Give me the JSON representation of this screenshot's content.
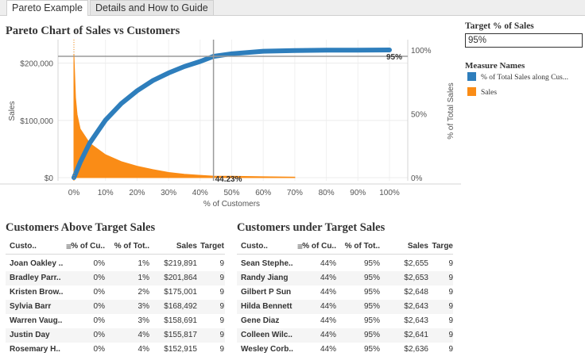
{
  "tabs": [
    {
      "label": "Pareto Example",
      "active": true
    },
    {
      "label": "Details and How to Guide",
      "active": false
    }
  ],
  "chart": {
    "title": "Pareto Chart of Sales vs Customers",
    "xlabel": "% of Customers",
    "ylabel_left": "Sales",
    "ylabel_right": "% of Total Sales",
    "x_ticks": [
      "0%",
      "10%",
      "20%",
      "30%",
      "40%",
      "50%",
      "60%",
      "70%",
      "80%",
      "90%",
      "100%"
    ],
    "y_left_ticks": [
      "$0",
      "$100,000",
      "$200,000"
    ],
    "y_right_ticks": [
      "0%",
      "50%",
      "100%"
    ],
    "ref_x_label": "44.23%",
    "ref_y_label": "95%",
    "colors": {
      "cumulative": "#2e7ebc",
      "sales": "#fa8c16"
    }
  },
  "chart_data": {
    "type": "area",
    "xlabel": "% of Customers",
    "ylabel": "Sales",
    "y2label": "% of Total Sales",
    "xlim": [
      0,
      100
    ],
    "ylim": [
      0,
      230000
    ],
    "y2lim": [
      0,
      100
    ],
    "reference_lines": {
      "x": 44.23,
      "y2": 95
    },
    "series": [
      {
        "name": "% of Total Sales along Customers",
        "axis": "right",
        "type": "line",
        "x": [
          0,
          2,
          5,
          10,
          15,
          20,
          25,
          30,
          35,
          40,
          44.23,
          50,
          60,
          70,
          80,
          90,
          100
        ],
        "values": [
          0,
          12,
          27,
          45,
          58,
          68,
          76,
          82,
          87,
          91,
          95,
          97,
          99,
          99.5,
          99.8,
          99.9,
          100
        ]
      },
      {
        "name": "Sales",
        "axis": "left",
        "type": "area",
        "x": [
          0,
          0.5,
          1,
          2,
          5,
          10,
          15,
          20,
          25,
          30,
          35,
          40,
          44.23,
          50,
          60,
          70
        ],
        "values": [
          215000,
          140000,
          110000,
          85000,
          60000,
          40000,
          28000,
          20000,
          14000,
          9000,
          6000,
          4000,
          2655,
          2300,
          1500,
          900
        ]
      }
    ]
  },
  "param": {
    "label": "Target  %  of  Sales",
    "value": "95%"
  },
  "legend": {
    "title": "Measure  Names",
    "items": [
      {
        "label": "% of Total Sales along Cus...",
        "color": "#2e7ebc"
      },
      {
        "label": "Sales",
        "color": "#fa8c16"
      }
    ]
  },
  "tables": {
    "above": {
      "title": "Customers  Above  Target  Sales",
      "headers": [
        "Custo..",
        "% of Cu..",
        "% of Tot..",
        "Sales",
        "Target"
      ],
      "rows": [
        [
          "Joan Oakley ..",
          "0%",
          "1%",
          "$219,891",
          "9"
        ],
        [
          "Bradley Parr..",
          "0%",
          "1%",
          "$201,864",
          "9"
        ],
        [
          "Kristen Brow..",
          "0%",
          "2%",
          "$175,001",
          "9"
        ],
        [
          "Sylvia Barr",
          "0%",
          "3%",
          "$168,492",
          "9"
        ],
        [
          "Warren Vaug..",
          "0%",
          "3%",
          "$158,691",
          "9"
        ],
        [
          "Justin Day",
          "0%",
          "4%",
          "$155,817",
          "9"
        ],
        [
          "Rosemary H..",
          "0%",
          "4%",
          "$152,915",
          "9"
        ]
      ]
    },
    "under": {
      "title": "Customers  under  Target  Sales",
      "headers": [
        "Custo..",
        "% of Cu..",
        "% of Tot..",
        "Sales",
        "Targe"
      ],
      "rows": [
        [
          "Sean Stephe..",
          "44%",
          "95%",
          "$2,655",
          "9"
        ],
        [
          "Randy Jiang",
          "44%",
          "95%",
          "$2,653",
          "9"
        ],
        [
          "Gilbert P Sun",
          "44%",
          "95%",
          "$2,648",
          "9"
        ],
        [
          "Hilda Bennett",
          "44%",
          "95%",
          "$2,643",
          "9"
        ],
        [
          "Gene Diaz",
          "44%",
          "95%",
          "$2,643",
          "9"
        ],
        [
          "Colleen Wilc..",
          "44%",
          "95%",
          "$2,641",
          "9"
        ],
        [
          "Wesley Corb..",
          "44%",
          "95%",
          "$2,636",
          "9"
        ]
      ]
    }
  }
}
